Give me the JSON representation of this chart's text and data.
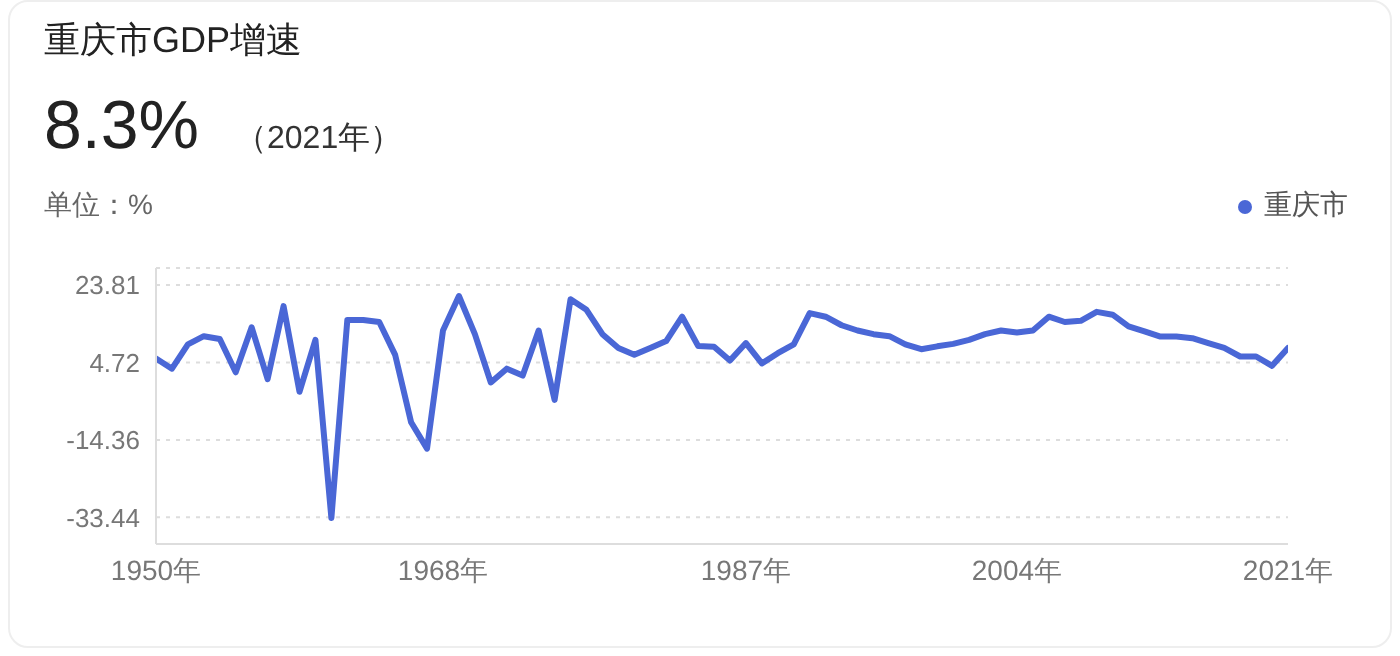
{
  "chart_data": {
    "type": "line",
    "title": "重庆市GDP增速",
    "subtitle": "8.3%",
    "annotations": [
      "（2021年）"
    ],
    "ylabel": "单位：%",
    "x": [
      1950,
      1951,
      1952,
      1953,
      1954,
      1955,
      1956,
      1957,
      1958,
      1959,
      1960,
      1961,
      1962,
      1963,
      1964,
      1965,
      1966,
      1967,
      1968,
      1969,
      1970,
      1971,
      1972,
      1973,
      1974,
      1975,
      1976,
      1977,
      1978,
      1979,
      1980,
      1981,
      1982,
      1983,
      1984,
      1985,
      1986,
      1987,
      1988,
      1989,
      1990,
      1991,
      1992,
      1993,
      1994,
      1995,
      1996,
      1997,
      1998,
      1999,
      2000,
      2001,
      2002,
      2003,
      2004,
      2005,
      2006,
      2007,
      2008,
      2009,
      2010,
      2011,
      2012,
      2013,
      2014,
      2015,
      2016,
      2017,
      2018,
      2019,
      2020,
      2021
    ],
    "series": [
      {
        "name": "重庆市",
        "color": "#4a67d6",
        "values": [
          5.7,
          3.2,
          9.2,
          11.2,
          10.5,
          2.3,
          13.4,
          0.6,
          18.6,
          -2.5,
          10.3,
          -33.6,
          15.2,
          15.2,
          14.7,
          6.6,
          -10.0,
          -16.5,
          12.6,
          21.1,
          11.7,
          -0.2,
          3.2,
          1.5,
          12.6,
          -4.5,
          20.3,
          17.7,
          11.7,
          8.3,
          6.6,
          8.3,
          10.0,
          16.0,
          8.8,
          8.6,
          5.2,
          9.5,
          4.5,
          7.0,
          9.2,
          16.9,
          16.0,
          13.9,
          12.6,
          11.7,
          11.2,
          9.2,
          8.0,
          8.7,
          9.3,
          10.3,
          11.7,
          12.6,
          12.1,
          12.6,
          16.0,
          14.7,
          15.0,
          17.2,
          16.5,
          13.6,
          12.4,
          11.1,
          11.1,
          10.7,
          9.5,
          8.3,
          6.2,
          6.2,
          3.9,
          8.3
        ]
      }
    ],
    "xlim": [
      1950,
      2021
    ],
    "xticks": [
      {
        "value": 1950,
        "label": "1950年"
      },
      {
        "value": 1968,
        "label": "1968年"
      },
      {
        "value": 1987,
        "label": "1987年"
      },
      {
        "value": 2004,
        "label": "2004年"
      },
      {
        "value": 2021,
        "label": "2021年"
      }
    ],
    "ylim": [
      -40,
      28
    ],
    "yticks": [
      -33.44,
      -14.36,
      4.72,
      23.81
    ],
    "grid": "y",
    "legend": "top right",
    "marker": "none",
    "line_style": "solid"
  }
}
